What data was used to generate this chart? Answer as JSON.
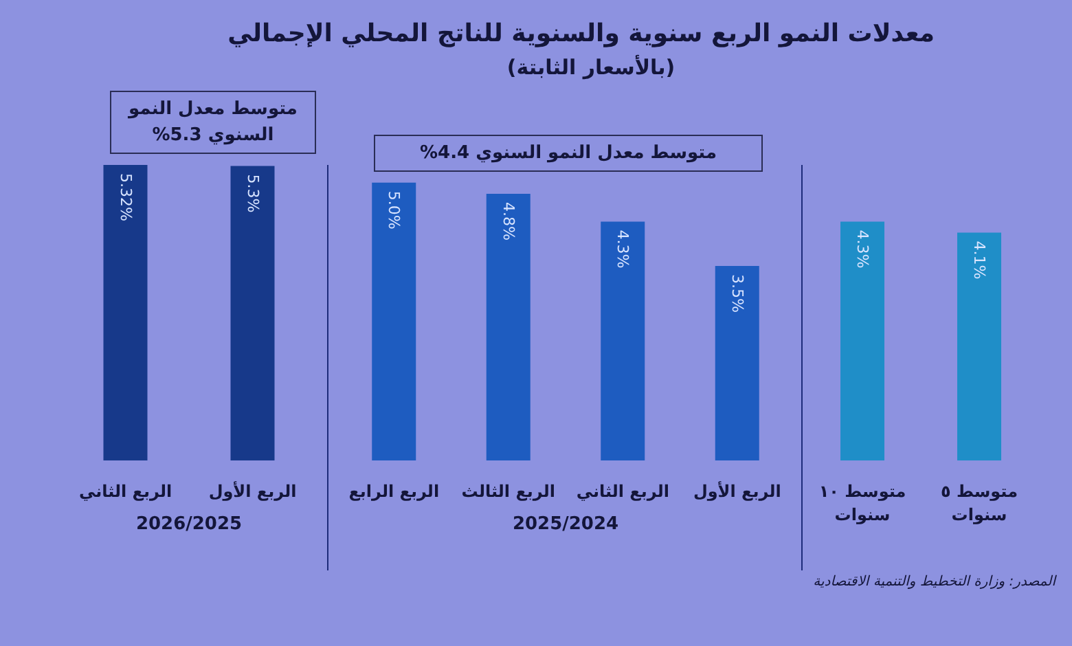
{
  "chart_data": [
    {
      "type": "bar",
      "categories": [
        "الربع الثاني",
        "الربع الأول"
      ],
      "values": [
        5.32,
        5.3
      ],
      "value_labels": [
        "5.32%",
        "5.3%"
      ],
      "color": "#17398a",
      "xlabel": "2026/2025",
      "annotations": [
        "متوسط معدل النمو السنوي 5.3%"
      ],
      "tick_labels": "x"
    },
    {
      "type": "bar",
      "title": "معدلات النمو الربع سنوية والسنوية للناتج المحلي الإجمالي",
      "subtitle": "(بالأسعار الثابتة)",
      "categories": [
        "الربع الرابع",
        "الربع الثالث",
        "الربع الثاني",
        "الربع الأول"
      ],
      "values": [
        5.0,
        4.8,
        4.3,
        3.5
      ],
      "value_labels": [
        "5.0%",
        "4.8%",
        "4.3%",
        "3.5%"
      ],
      "color": "#1e5cc0",
      "xlabel": "2025/2024",
      "annotations": [
        "متوسط معدل النمو السنوي 4.4%"
      ],
      "tick_labels": "x"
    },
    {
      "type": "bar",
      "categories": [
        "متوسط ١٠ سنوات",
        "متوسط ٥ سنوات"
      ],
      "values": [
        4.3,
        4.1
      ],
      "value_labels": [
        "4.3%",
        "4.1%"
      ],
      "color": "#1f8ec8",
      "annotations": [
        "المصدر: وزارة التخطيط والتنمية الاقتصادية"
      ],
      "tick_labels": "x"
    }
  ]
}
